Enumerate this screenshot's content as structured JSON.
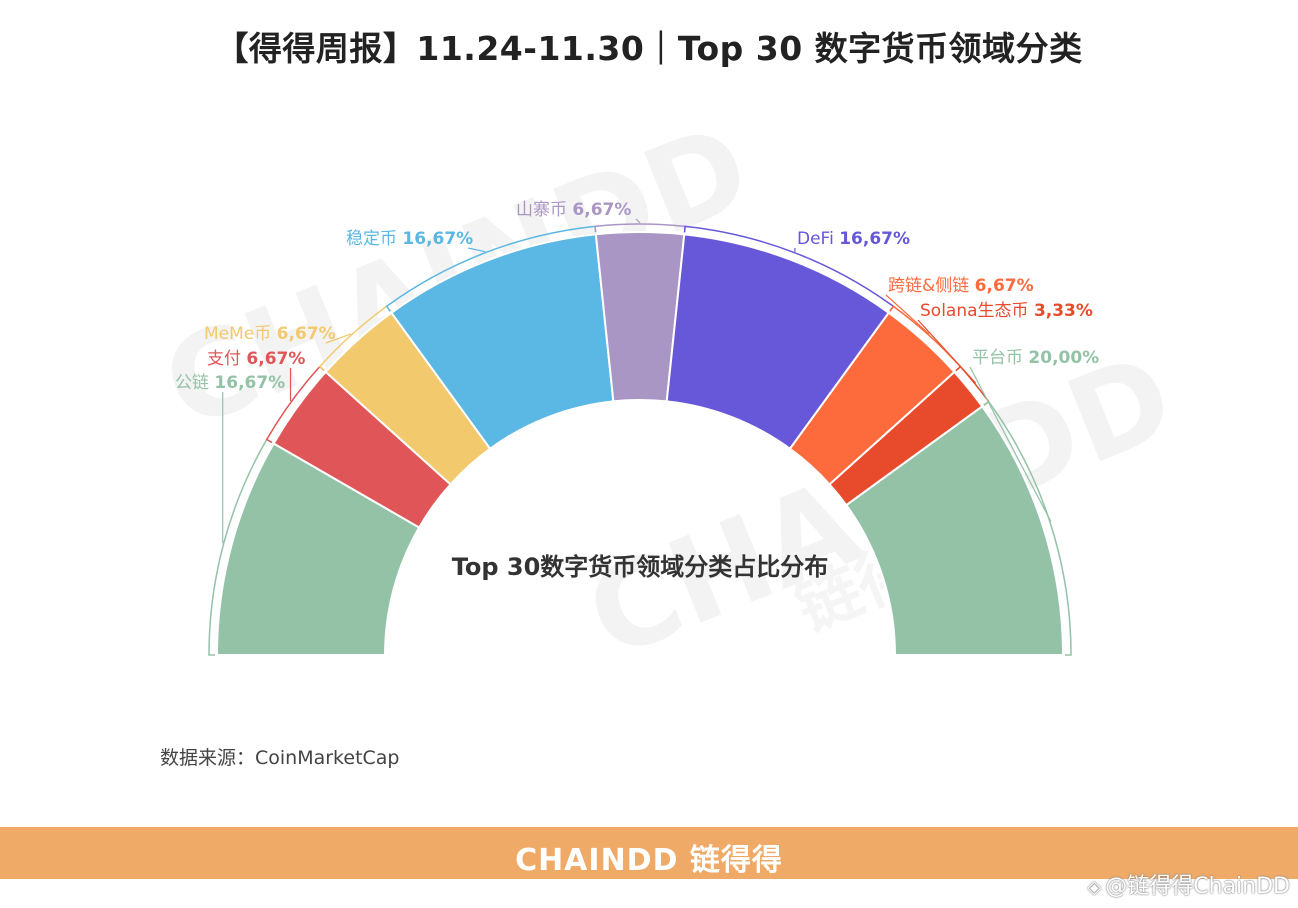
{
  "title": "【得得周报】11.24-11.30｜Top 30 数字货币领域分类",
  "chart_data": {
    "type": "pie",
    "subtype": "semicircle-donut",
    "center_label": "Top 30数字货币领域分类占比分布",
    "slices": [
      {
        "label": "公链",
        "value": 16.67,
        "value_text": "16,67%",
        "color": "#93c2a7"
      },
      {
        "label": "支付",
        "value": 6.67,
        "value_text": "6,67%",
        "color": "#e05558"
      },
      {
        "label": "MeMe币",
        "value": 6.67,
        "value_text": "6,67%",
        "color": "#f2c96d"
      },
      {
        "label": "稳定币",
        "value": 16.67,
        "value_text": "16,67%",
        "color": "#5bb7e3"
      },
      {
        "label": "山寨币",
        "value": 6.67,
        "value_text": "6,67%",
        "color": "#a996c4"
      },
      {
        "label": "DeFi",
        "value": 16.67,
        "value_text": "16,67%",
        "color": "#6658d8"
      },
      {
        "label": "跨链&侧链",
        "value": 6.67,
        "value_text": "6,67%",
        "color": "#fd6a3c"
      },
      {
        "label": "Solana生态币",
        "value": 3.33,
        "value_text": "3,33%",
        "color": "#e84b2c"
      },
      {
        "label": "平台币",
        "value": 20.0,
        "value_text": "20,00%",
        "color": "#93c2a7"
      }
    ]
  },
  "source": "数据来源：CoinMarketCap",
  "watermark": {
    "brand": "CHAINDD",
    "cn": "链得得"
  },
  "footer": {
    "logo": "CHAINDD 链得得"
  },
  "credit": {
    "text": "@链得得ChainDD",
    "icon": "binance-diamond-icon"
  }
}
